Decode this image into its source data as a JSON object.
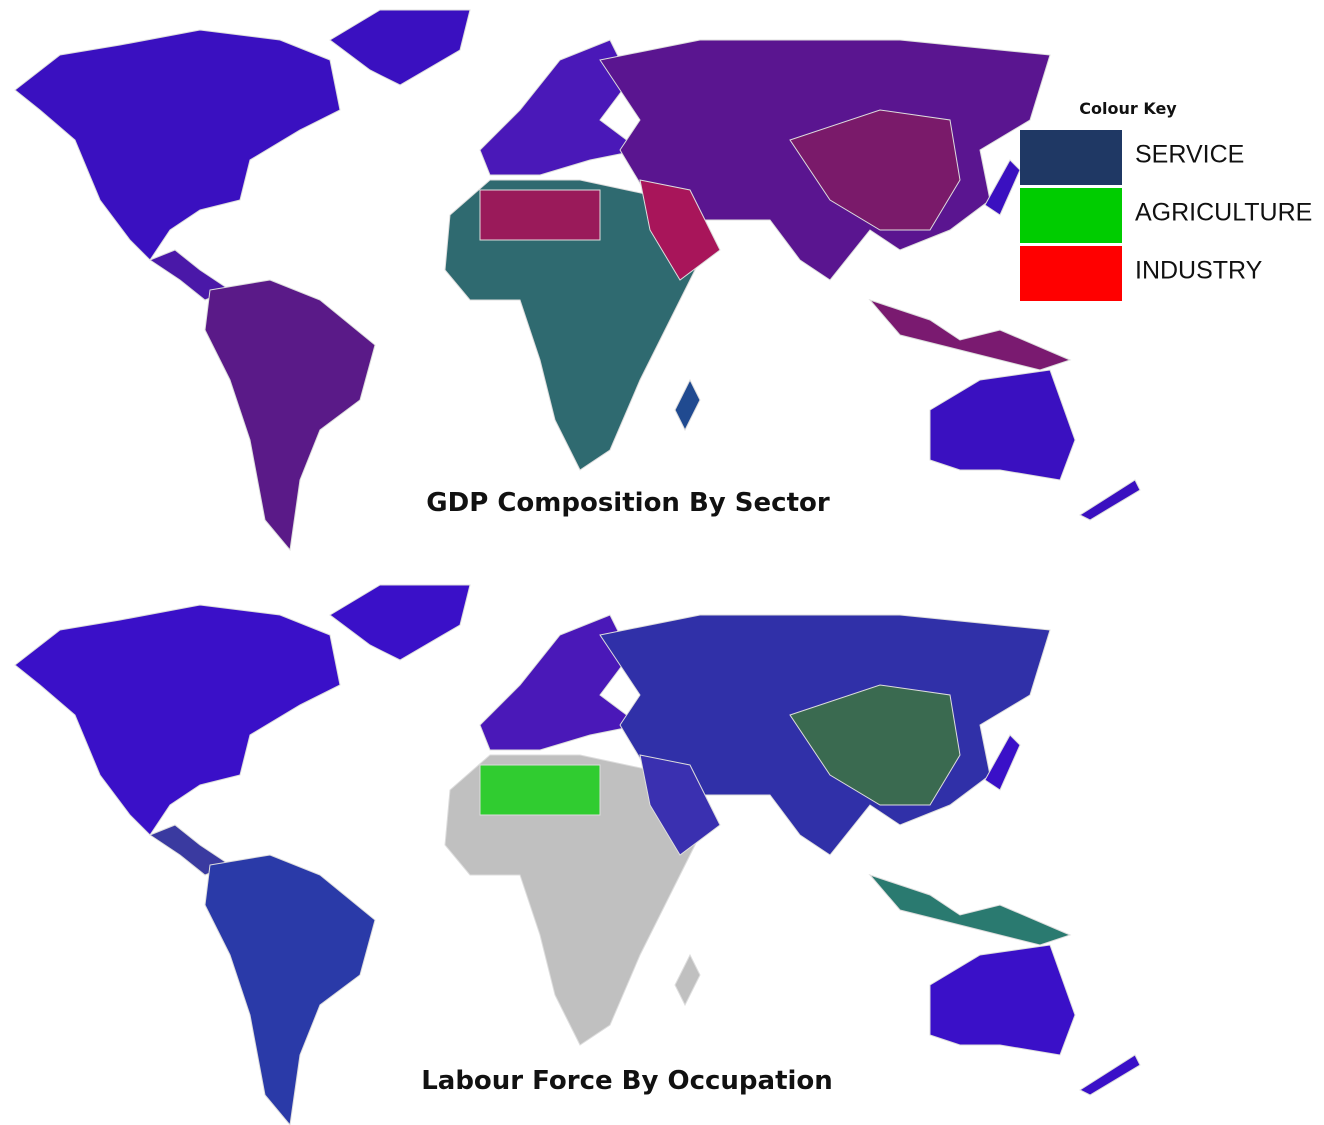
{
  "maps": [
    {
      "title": "GDP Composition By Sector"
    },
    {
      "title": "Labour Force By Occupation"
    }
  ],
  "legend": {
    "title": "Colour Key",
    "items": [
      {
        "label": "SERVICE",
        "color": "#1f3864"
      },
      {
        "label": "AGRICULTURE",
        "color": "#00cc00"
      },
      {
        "label": "INDUSTRY",
        "color": "#ff0000"
      }
    ]
  }
}
